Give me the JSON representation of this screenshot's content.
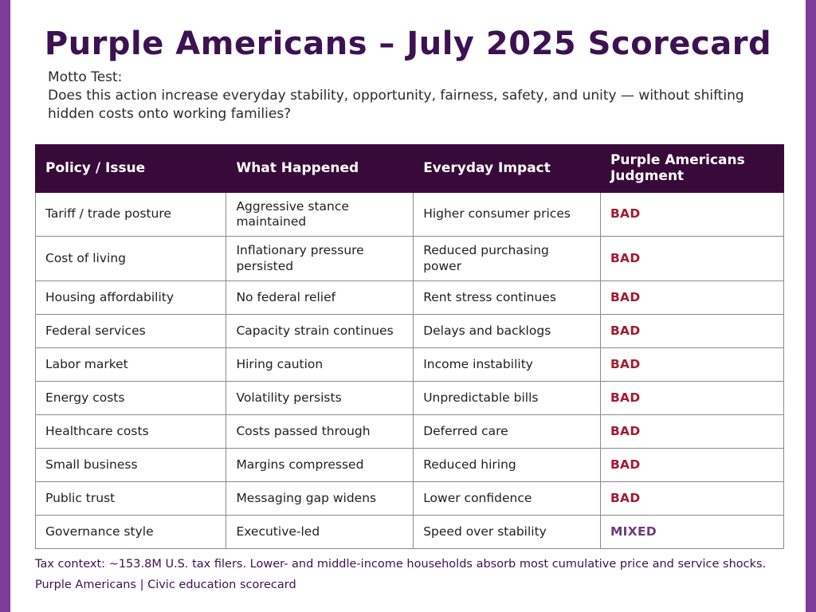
{
  "title": "Purple Americans – July 2025 Scorecard",
  "motto": {
    "label": "Motto Test:",
    "question": "Does this action increase everyday stability, opportunity, fairness, safety, and unity — without shifting hidden costs onto working families?"
  },
  "table": {
    "headers": [
      "Policy / Issue",
      "What Happened",
      "Everyday Impact",
      "Purple Americans Judgment"
    ],
    "rows": [
      {
        "policy": "Tariff / trade posture",
        "happened": "Aggressive stance maintained",
        "impact": "Higher consumer prices",
        "judgment": "BAD"
      },
      {
        "policy": "Cost of living",
        "happened": "Inflationary pressure persisted",
        "impact": "Reduced purchasing power",
        "judgment": "BAD"
      },
      {
        "policy": "Housing affordability",
        "happened": "No federal relief",
        "impact": "Rent stress continues",
        "judgment": "BAD"
      },
      {
        "policy": "Federal services",
        "happened": "Capacity strain continues",
        "impact": "Delays and backlogs",
        "judgment": "BAD"
      },
      {
        "policy": "Labor market",
        "happened": "Hiring caution",
        "impact": "Income instability",
        "judgment": "BAD"
      },
      {
        "policy": "Energy costs",
        "happened": "Volatility persists",
        "impact": "Unpredictable bills",
        "judgment": "BAD"
      },
      {
        "policy": "Healthcare costs",
        "happened": "Costs passed through",
        "impact": "Deferred care",
        "judgment": "BAD"
      },
      {
        "policy": "Small business",
        "happened": "Margins compressed",
        "impact": "Reduced hiring",
        "judgment": "BAD"
      },
      {
        "policy": "Public trust",
        "happened": "Messaging gap widens",
        "impact": "Lower confidence",
        "judgment": "BAD"
      },
      {
        "policy": "Governance style",
        "happened": "Executive-led",
        "impact": "Speed over stability",
        "judgment": "MIXED"
      }
    ]
  },
  "footer": {
    "tax_context": "Tax context: ~153.8M U.S. tax filers. Lower- and middle-income households absorb most cumulative price and service shocks.",
    "source": "Purple Americans | Civic education scorecard"
  },
  "colors": {
    "accent_side_strip": "#7d3c98",
    "title_purple": "#3d1152",
    "header_background": "#380a39",
    "judgment_bad": "#a31a2e",
    "judgment_mixed": "#6d3a7d"
  }
}
